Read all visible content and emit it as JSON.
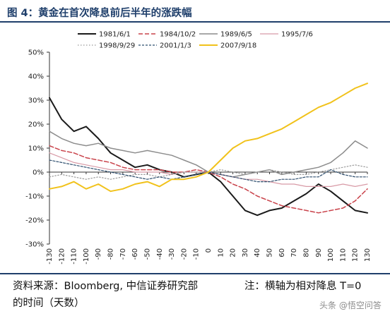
{
  "header": {
    "title": "图 4：黄金在首次降息前后半年的涨跌幅"
  },
  "footer": {
    "source": "资料来源：Bloomberg, 中信证券研究部",
    "note_line1": "注：横轴为相对降息 T=0",
    "note_line2": "的时间（天数）",
    "watermark": "头条 @悟空问答"
  },
  "chart_data": {
    "type": "line",
    "title": "黄金在首次降息前后半年的涨跌幅",
    "xlabel": "",
    "ylabel": "",
    "xlim": [
      -130,
      130
    ],
    "ylim": [
      -30,
      50
    ],
    "y_ticks": [
      -30,
      -20,
      -10,
      0,
      10,
      20,
      30,
      40,
      50
    ],
    "y_tick_labels": [
      "-30%",
      "-20%",
      "-10%",
      "0%",
      "10%",
      "20%",
      "30%",
      "40%",
      "50%"
    ],
    "x_ticks": [
      -130,
      -120,
      -110,
      -100,
      -90,
      -80,
      -70,
      -60,
      -50,
      -40,
      -30,
      -20,
      -10,
      0,
      10,
      20,
      30,
      40,
      50,
      60,
      70,
      80,
      90,
      100,
      110,
      120,
      130
    ],
    "grid": false,
    "legend_position": "top",
    "series": [
      {
        "name": "1981/6/1",
        "color": "#1a1a1a",
        "dash": "solid",
        "width": 2.0,
        "x": [
          -130,
          -120,
          -110,
          -100,
          -90,
          -80,
          -70,
          -60,
          -50,
          -40,
          -30,
          -20,
          -10,
          0,
          10,
          20,
          30,
          40,
          50,
          60,
          70,
          80,
          90,
          100,
          110,
          120,
          130
        ],
        "y": [
          31,
          22,
          17,
          19,
          14,
          8,
          5,
          2,
          3,
          1,
          0,
          -2,
          -1,
          0,
          -4,
          -10,
          -16,
          -18,
          -16,
          -15,
          -12,
          -9,
          -5,
          -8,
          -12,
          -16,
          -17
        ]
      },
      {
        "name": "1984/10/2",
        "color": "#c9424a",
        "dash": "dash",
        "width": 1.5,
        "x": [
          -130,
          -120,
          -110,
          -100,
          -90,
          -80,
          -70,
          -60,
          -50,
          -40,
          -30,
          -20,
          -10,
          0,
          10,
          20,
          30,
          40,
          50,
          60,
          70,
          80,
          90,
          100,
          110,
          120,
          130
        ],
        "y": [
          11,
          9,
          8,
          6,
          5,
          4,
          2,
          1,
          1,
          1,
          0,
          0,
          1,
          0,
          -2,
          -5,
          -7,
          -10,
          -12,
          -14,
          -15,
          -16,
          -17,
          -16,
          -15,
          -12,
          -7
        ]
      },
      {
        "name": "1989/6/5",
        "color": "#8c8c8c",
        "dash": "solid",
        "width": 1.5,
        "x": [
          -130,
          -120,
          -110,
          -100,
          -90,
          -80,
          -70,
          -60,
          -50,
          -40,
          -30,
          -20,
          -10,
          0,
          10,
          20,
          30,
          40,
          50,
          60,
          70,
          80,
          90,
          100,
          110,
          120,
          130
        ],
        "y": [
          17,
          14,
          12,
          11,
          12,
          10,
          9,
          8,
          9,
          8,
          7,
          5,
          3,
          0,
          -1,
          -2,
          -1,
          0,
          1,
          -1,
          0,
          1,
          2,
          4,
          8,
          13,
          10
        ]
      },
      {
        "name": "1995/7/6",
        "color": "#d89aa6",
        "dash": "solid",
        "width": 1.2,
        "x": [
          -130,
          -120,
          -110,
          -100,
          -90,
          -80,
          -70,
          -60,
          -50,
          -40,
          -30,
          -20,
          -10,
          0,
          10,
          20,
          30,
          40,
          50,
          60,
          70,
          80,
          90,
          100,
          110,
          120,
          130
        ],
        "y": [
          8,
          6,
          4,
          3,
          2,
          1,
          1,
          0,
          0,
          0,
          -1,
          0,
          0,
          0,
          -1,
          -2,
          -3,
          -3,
          -4,
          -5,
          -5,
          -6,
          -6,
          -6,
          -5,
          -6,
          -5
        ]
      },
      {
        "name": "1998/9/29",
        "color": "#9a9a9a",
        "dash": "dot",
        "width": 1.2,
        "x": [
          -130,
          -120,
          -110,
          -100,
          -90,
          -80,
          -70,
          -60,
          -50,
          -40,
          -30,
          -20,
          -10,
          0,
          10,
          20,
          30,
          40,
          50,
          60,
          70,
          80,
          90,
          100,
          110,
          120,
          130
        ],
        "y": [
          -2,
          -1,
          -2,
          -3,
          -2,
          -3,
          -2,
          -1,
          -1,
          -2,
          -1,
          0,
          0,
          0,
          1,
          0,
          -1,
          0,
          1,
          0,
          -1,
          -1,
          0,
          1,
          2,
          3,
          2
        ]
      },
      {
        "name": "2001/1/3",
        "color": "#2f4f6f",
        "dash": "shortdash",
        "width": 1.2,
        "x": [
          -130,
          -120,
          -110,
          -100,
          -90,
          -80,
          -70,
          -60,
          -50,
          -40,
          -30,
          -20,
          -10,
          0,
          10,
          20,
          30,
          40,
          50,
          60,
          70,
          80,
          90,
          100,
          110,
          120,
          130
        ],
        "y": [
          5,
          4,
          3,
          2,
          1,
          0,
          -1,
          -2,
          -3,
          -2,
          -3,
          -2,
          -1,
          0,
          -1,
          -2,
          -3,
          -4,
          -4,
          -3,
          -3,
          -2,
          -2,
          1,
          -1,
          -2,
          -2
        ]
      },
      {
        "name": "2007/9/18",
        "color": "#f1c21b",
        "dash": "solid",
        "width": 2.0,
        "x": [
          -130,
          -120,
          -110,
          -100,
          -90,
          -80,
          -70,
          -60,
          -50,
          -40,
          -30,
          -20,
          -10,
          0,
          10,
          20,
          30,
          40,
          50,
          60,
          70,
          80,
          90,
          100,
          110,
          120,
          130
        ],
        "y": [
          -7,
          -6,
          -4,
          -7,
          -5,
          -8,
          -7,
          -5,
          -4,
          -6,
          -3,
          -3,
          -2,
          0,
          5,
          10,
          13,
          14,
          16,
          18,
          21,
          24,
          27,
          29,
          32,
          35,
          37
        ]
      }
    ]
  }
}
